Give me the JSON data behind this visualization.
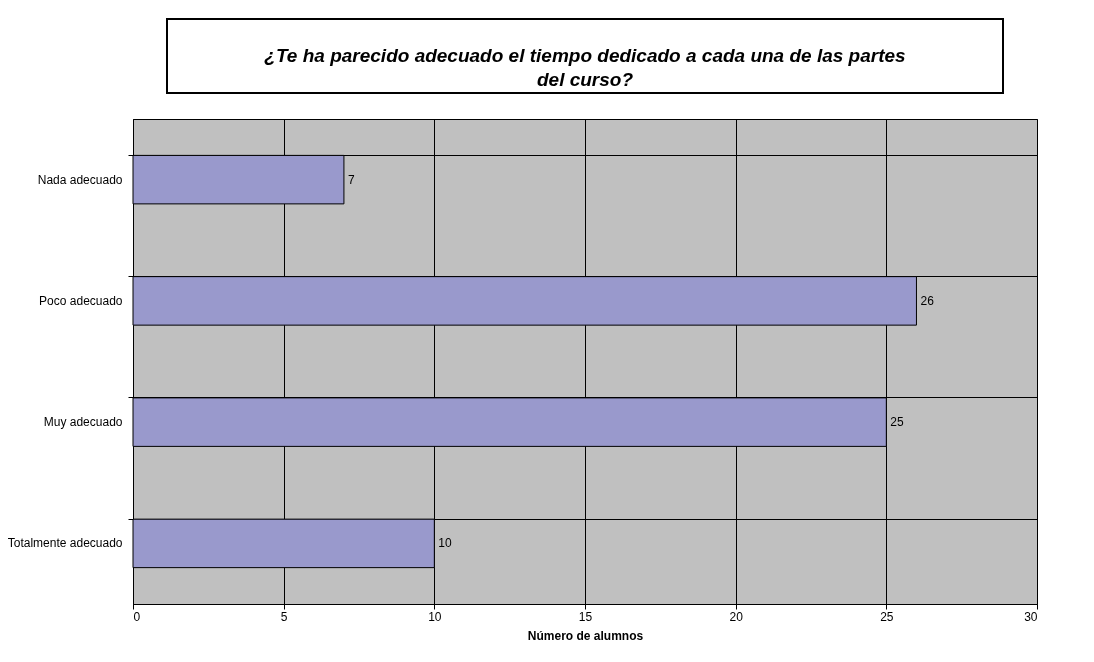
{
  "chart_data": {
    "type": "bar",
    "orientation": "horizontal",
    "title": "¿Te ha parecido adecuado el tiempo dedicado a cada una de las partes del curso?",
    "xlabel": "Número de alumnos",
    "categories": [
      "Nada adecuado",
      "Poco adecuado",
      "Muy adecuado",
      "Totalmente adecuado"
    ],
    "values": [
      7,
      26,
      25,
      10
    ],
    "color": "#9999cc",
    "xlim": [
      0,
      30
    ],
    "xticks": [
      0,
      5,
      10,
      15,
      20,
      25,
      30
    ],
    "grid": true,
    "data_labels": true
  }
}
